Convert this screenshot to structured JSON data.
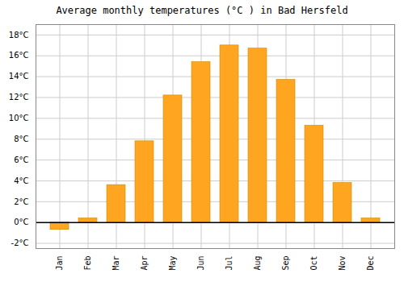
{
  "chart_data": {
    "type": "bar",
    "title": "Average monthly temperatures (°C ) in Bad Hersfeld",
    "categories": [
      "Jan",
      "Feb",
      "Mar",
      "Apr",
      "May",
      "Jun",
      "Jul",
      "Aug",
      "Sep",
      "Oct",
      "Nov",
      "Dec"
    ],
    "values": [
      -0.7,
      0.4,
      3.6,
      7.8,
      12.2,
      15.4,
      17.0,
      16.7,
      13.7,
      9.3,
      3.8,
      0.4
    ],
    "color": "#FFA520",
    "ylim": [
      -2.5,
      19
    ],
    "yticks": [
      {
        "value": -2,
        "label": "-2°C"
      },
      {
        "value": 0,
        "label": "0°C"
      },
      {
        "value": 2,
        "label": "2°C"
      },
      {
        "value": 4,
        "label": "4°C"
      },
      {
        "value": 6,
        "label": "6°C"
      },
      {
        "value": 8,
        "label": "8°C"
      },
      {
        "value": 10,
        "label": "10°C"
      },
      {
        "value": 12,
        "label": "12°C"
      },
      {
        "value": 14,
        "label": "14°C"
      },
      {
        "value": 16,
        "label": "16°C"
      },
      {
        "value": 18,
        "label": "18°C"
      }
    ],
    "grid": true
  }
}
